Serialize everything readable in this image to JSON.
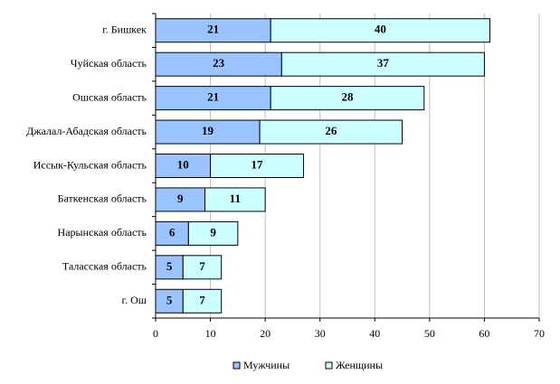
{
  "chart_data": {
    "type": "stacked-bar-horizontal",
    "categories": [
      "г. Бишкек",
      "Чуйская область",
      "Ошская область",
      "Джалал-Абадская область",
      "Иссык-Кульская область",
      "Баткенская область",
      "Нарынская область",
      "Таласская область",
      "г. Ош"
    ],
    "series": [
      {
        "name": "Мужчины",
        "color": "#99c4ff",
        "values": [
          21,
          23,
          21,
          19,
          10,
          9,
          6,
          5,
          5
        ]
      },
      {
        "name": "Женщины",
        "color": "#ccffff",
        "values": [
          40,
          37,
          28,
          26,
          17,
          11,
          9,
          7,
          7
        ]
      }
    ],
    "xlim": [
      0,
      70
    ],
    "xticks": [
      0,
      10,
      20,
      30,
      40,
      50,
      60,
      70
    ],
    "grid": true,
    "legend": "bottom"
  }
}
